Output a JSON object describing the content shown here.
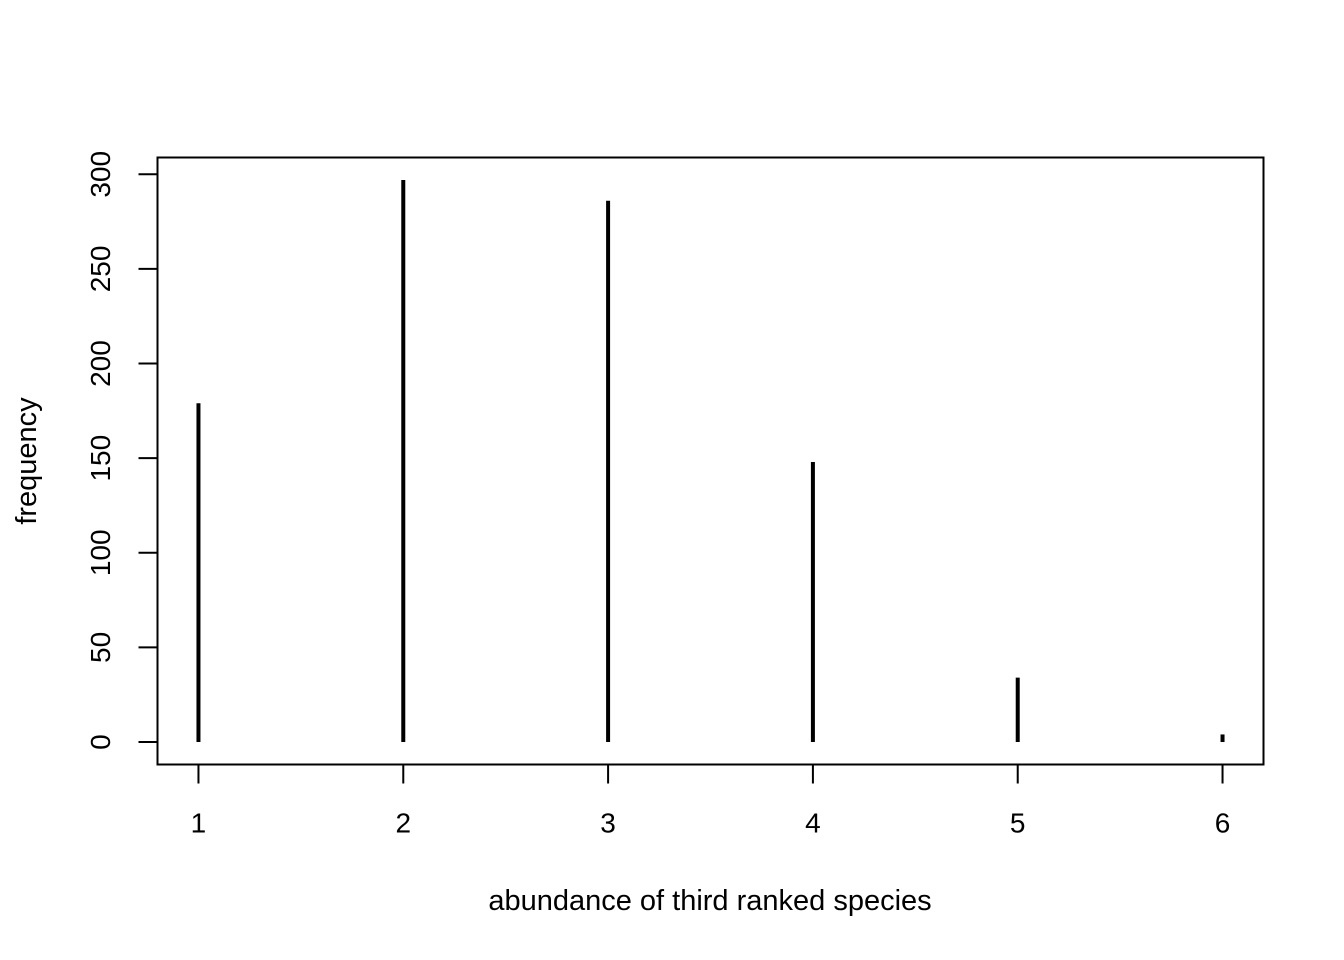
{
  "chart_data": {
    "type": "bar",
    "subtype": "histogram-lines",
    "xlabel": "abundance of third ranked species",
    "ylabel": "frequency",
    "x": [
      1,
      2,
      3,
      4,
      5,
      6
    ],
    "values": [
      179,
      297,
      286,
      148,
      34,
      4
    ],
    "x_ticks": [
      "1",
      "2",
      "3",
      "4",
      "5",
      "6"
    ],
    "y_ticks": [
      "0",
      "50",
      "100",
      "150",
      "200",
      "250",
      "300"
    ],
    "xlim": [
      0.8,
      6.2
    ],
    "ylim": [
      -11.88,
      308.88
    ],
    "grid": false,
    "legend": "none",
    "line_color": "#000000"
  }
}
